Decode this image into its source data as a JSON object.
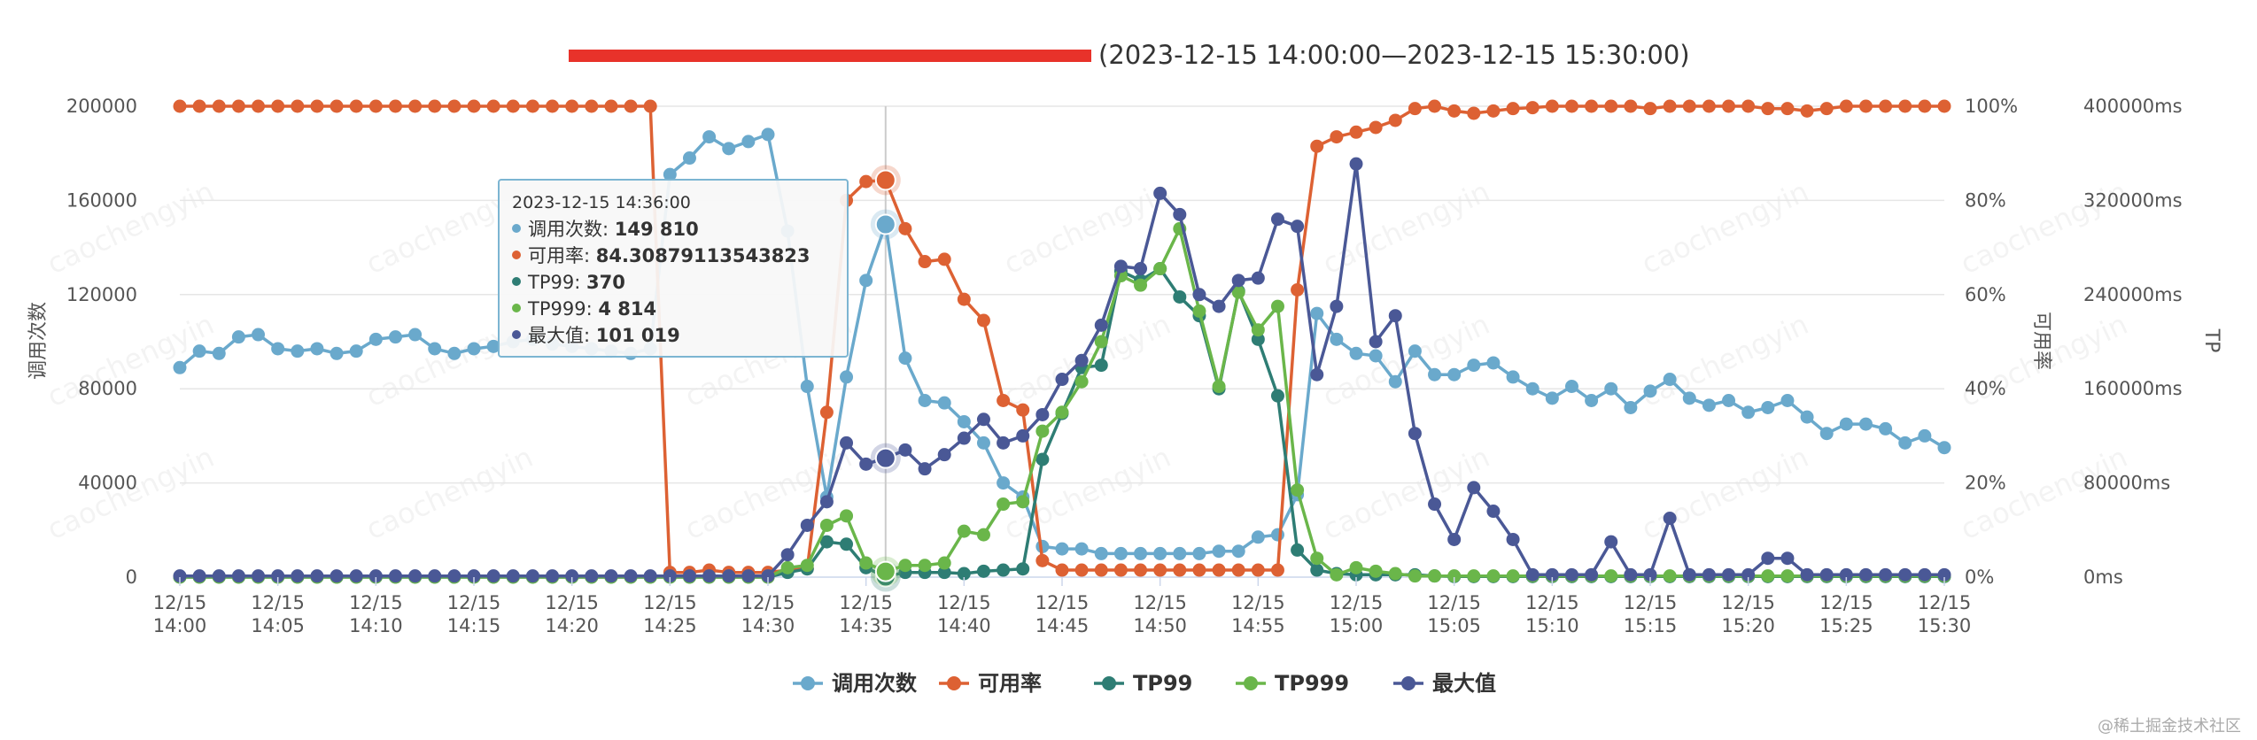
{
  "chart_data": {
    "type": "line",
    "title_visible": "(2023-12-15 14:00:00—2023-12-15 15:30:00)",
    "title_redacted": true,
    "x": [
      "12/15 14:00",
      "12/15 14:01",
      "12/15 14:02",
      "12/15 14:03",
      "12/15 14:04",
      "12/15 14:05",
      "12/15 14:06",
      "12/15 14:07",
      "12/15 14:08",
      "12/15 14:09",
      "12/15 14:10",
      "12/15 14:11",
      "12/15 14:12",
      "12/15 14:13",
      "12/15 14:14",
      "12/15 14:15",
      "12/15 14:16",
      "12/15 14:17",
      "12/15 14:18",
      "12/15 14:19",
      "12/15 14:20",
      "12/15 14:21",
      "12/15 14:22",
      "12/15 14:23",
      "12/15 14:24",
      "12/15 14:25",
      "12/15 14:26",
      "12/15 14:27",
      "12/15 14:28",
      "12/15 14:29",
      "12/15 14:30",
      "12/15 14:31",
      "12/15 14:32",
      "12/15 14:33",
      "12/15 14:34",
      "12/15 14:35",
      "12/15 14:36",
      "12/15 14:37",
      "12/15 14:38",
      "12/15 14:39",
      "12/15 14:40",
      "12/15 14:41",
      "12/15 14:42",
      "12/15 14:43",
      "12/15 14:44",
      "12/15 14:45",
      "12/15 14:46",
      "12/15 14:47",
      "12/15 14:48",
      "12/15 14:49",
      "12/15 14:50",
      "12/15 14:51",
      "12/15 14:52",
      "12/15 14:53",
      "12/15 14:54",
      "12/15 14:55",
      "12/15 14:56",
      "12/15 14:57",
      "12/15 14:58",
      "12/15 14:59",
      "12/15 15:00",
      "12/15 15:01",
      "12/15 15:02",
      "12/15 15:03",
      "12/15 15:04",
      "12/15 15:05",
      "12/15 15:06",
      "12/15 15:07",
      "12/15 15:08",
      "12/15 15:09",
      "12/15 15:10",
      "12/15 15:11",
      "12/15 15:12",
      "12/15 15:13",
      "12/15 15:14",
      "12/15 15:15",
      "12/15 15:16",
      "12/15 15:17",
      "12/15 15:18",
      "12/15 15:19",
      "12/15 15:20",
      "12/15 15:21",
      "12/15 15:22",
      "12/15 15:23",
      "12/15 15:24",
      "12/15 15:25",
      "12/15 15:26",
      "12/15 15:27",
      "12/15 15:28",
      "12/15 15:29",
      "12/15 15:30"
    ],
    "x_tick_labels": [
      [
        "12/15",
        "14:00"
      ],
      [
        "12/15",
        "14:05"
      ],
      [
        "12/15",
        "14:10"
      ],
      [
        "12/15",
        "14:15"
      ],
      [
        "12/15",
        "14:20"
      ],
      [
        "12/15",
        "14:25"
      ],
      [
        "12/15",
        "14:30"
      ],
      [
        "12/15",
        "14:35"
      ],
      [
        "12/15",
        "14:40"
      ],
      [
        "12/15",
        "14:45"
      ],
      [
        "12/15",
        "14:50"
      ],
      [
        "12/15",
        "14:55"
      ],
      [
        "12/15",
        "15:00"
      ],
      [
        "12/15",
        "15:05"
      ],
      [
        "12/15",
        "15:10"
      ],
      [
        "12/15",
        "15:15"
      ],
      [
        "12/15",
        "15:20"
      ],
      [
        "12/15",
        "15:25"
      ],
      [
        "12/15",
        "15:30"
      ]
    ],
    "axes": {
      "left": {
        "label": "调用次数",
        "ylim": [
          0,
          200000
        ],
        "ticks": [
          "0",
          "40000",
          "80000",
          "120000",
          "160000",
          "200000"
        ]
      },
      "right1": {
        "label": "可用率",
        "ylim": [
          0,
          100
        ],
        "ticks": [
          "0%",
          "20%",
          "40%",
          "60%",
          "80%",
          "100%"
        ]
      },
      "right2": {
        "label": "TP",
        "ylim": [
          0,
          400000
        ],
        "ticks": [
          "0ms",
          "80000ms",
          "160000ms",
          "240000ms",
          "320000ms",
          "400000ms"
        ]
      }
    },
    "grid": true,
    "legend_position": "bottom-center",
    "series": [
      {
        "name": "调用次数",
        "axis": "left",
        "color": "#6aa9cc",
        "values": [
          89000,
          96000,
          95000,
          102000,
          103000,
          97000,
          96000,
          97000,
          95000,
          96000,
          101000,
          102000,
          103000,
          97000,
          95000,
          97000,
          98000,
          100000,
          101000,
          99000,
          98000,
          97000,
          96000,
          95000,
          97000,
          171000,
          178000,
          187000,
          182000,
          185000,
          188000,
          147000,
          81000,
          34000,
          85000,
          126000,
          149810,
          93000,
          75000,
          74000,
          66000,
          57000,
          40000,
          34000,
          13000,
          12000,
          12000,
          10000,
          10000,
          10000,
          10000,
          10000,
          10000,
          11000,
          11000,
          17000,
          18000,
          35000,
          112000,
          101000,
          95000,
          94000,
          83000,
          96000,
          86000,
          86000,
          90000,
          91000,
          85000,
          80000,
          76000,
          81000,
          75000,
          80000,
          72000,
          79000,
          84000,
          76000,
          73000,
          75000,
          70000,
          72000,
          75000,
          68000,
          61000,
          65000,
          65000,
          63000,
          57000,
          60000,
          55000
        ]
      },
      {
        "name": "可用率",
        "axis": "right1",
        "color": "#dd6133",
        "values": [
          100,
          100,
          100,
          100,
          100,
          100,
          100,
          100,
          100,
          100,
          100,
          100,
          100,
          100,
          100,
          100,
          100,
          100,
          100,
          100,
          100,
          100,
          100,
          100,
          100,
          1,
          1,
          1.5,
          1,
          1,
          1,
          1.5,
          1.8,
          35,
          80,
          84,
          84.30879113543823,
          74,
          67,
          67.5,
          59,
          54.5,
          37.5,
          35.5,
          3.5,
          1.5,
          1.5,
          1.5,
          1.5,
          1.5,
          1.5,
          1.5,
          1.5,
          1.5,
          1.5,
          1.5,
          1.5,
          61,
          91.5,
          93.5,
          94.5,
          95.5,
          97,
          99.5,
          100,
          99,
          98.5,
          99,
          99.5,
          99.7,
          100,
          100,
          100,
          100,
          100,
          99.5,
          100,
          100,
          100,
          100,
          100,
          99.5,
          99.5,
          99,
          99.5,
          100,
          100,
          100,
          100,
          100,
          100
        ]
      },
      {
        "name": "TP99",
        "axis": "right2",
        "color": "#2e7d74",
        "values": [
          0,
          0,
          0,
          0,
          0,
          0,
          0,
          0,
          0,
          0,
          0,
          0,
          0,
          0,
          0,
          0,
          0,
          0,
          0,
          0,
          0,
          0,
          0,
          0,
          0,
          0,
          0,
          0,
          0,
          0,
          0,
          4000,
          7000,
          30000,
          28000,
          8000,
          370,
          4000,
          4000,
          4000,
          3000,
          5000,
          6000,
          7000,
          100000,
          139000,
          178000,
          180000,
          260000,
          252000,
          262000,
          238000,
          222000,
          160000,
          243000,
          202000,
          154000,
          23000,
          6000,
          3000,
          2000,
          2000,
          2000,
          2000,
          1000,
          500,
          500,
          500,
          500,
          500,
          500,
          500,
          500,
          500,
          500,
          500,
          500,
          500,
          500,
          500,
          500,
          500,
          500,
          500,
          500,
          500,
          500,
          500,
          500,
          500,
          500
        ]
      },
      {
        "name": "TP999",
        "axis": "right2",
        "color": "#6ab64a",
        "values": [
          0,
          0,
          0,
          0,
          0,
          0,
          0,
          0,
          0,
          0,
          0,
          0,
          0,
          0,
          0,
          0,
          0,
          0,
          0,
          0,
          0,
          0,
          0,
          0,
          0,
          0,
          0,
          0,
          0,
          0,
          0,
          8000,
          10000,
          44000,
          52000,
          12000,
          4814,
          10000,
          10000,
          12000,
          39000,
          36000,
          62000,
          64000,
          124000,
          140000,
          166000,
          200000,
          256000,
          248000,
          262000,
          296000,
          226000,
          162000,
          242000,
          210000,
          230000,
          74000,
          16000,
          2000,
          8000,
          5000,
          3000,
          1000,
          1000,
          1000,
          1000,
          1000,
          1000,
          1000,
          1000,
          1000,
          1000,
          1000,
          1000,
          1000,
          1000,
          1000,
          1000,
          1000,
          1000,
          1000,
          1000,
          1000,
          1000,
          1000,
          1000,
          1000,
          1000,
          1000,
          1000
        ]
      },
      {
        "name": "最大值",
        "axis": "right2",
        "color": "#4a5896",
        "values": [
          1000,
          1000,
          1000,
          1000,
          1000,
          1000,
          1000,
          1000,
          1000,
          1000,
          1000,
          1000,
          1000,
          1000,
          1000,
          1000,
          1000,
          1000,
          1000,
          1000,
          1000,
          1000,
          1000,
          1000,
          1000,
          1000,
          1000,
          1000,
          1000,
          1000,
          1000,
          19000,
          44000,
          64000,
          114000,
          96000,
          101019,
          108000,
          92000,
          104000,
          118000,
          134000,
          114000,
          120000,
          138000,
          168000,
          184000,
          214000,
          264000,
          262000,
          326000,
          308000,
          240000,
          230000,
          252000,
          254000,
          304000,
          298000,
          172000,
          230000,
          351000,
          200000,
          222000,
          122000,
          62000,
          32000,
          76000,
          56000,
          32000,
          2000,
          2000,
          2000,
          2000,
          30000,
          2000,
          2000,
          50000,
          2000,
          2000,
          2000,
          2000,
          16000,
          16000,
          2000,
          2000,
          2000,
          2000,
          2000,
          2000,
          2000,
          2000
        ]
      }
    ],
    "tooltip": {
      "time": "2023-12-15 14:36:00",
      "index": 36,
      "rows": [
        {
          "name": "调用次数",
          "value": "149 810",
          "color": "#6aa9cc"
        },
        {
          "name": "可用率",
          "value": "84.30879113543823",
          "color": "#dd6133"
        },
        {
          "name": "TP99",
          "value": "370",
          "color": "#2e7d74"
        },
        {
          "name": "TP999",
          "value": "4 814",
          "color": "#6ab64a"
        },
        {
          "name": "最大值",
          "value": "101 019",
          "color": "#4a5896"
        }
      ]
    },
    "watermark": "caochengyin",
    "credit": "@稀土掘金技术社区"
  }
}
